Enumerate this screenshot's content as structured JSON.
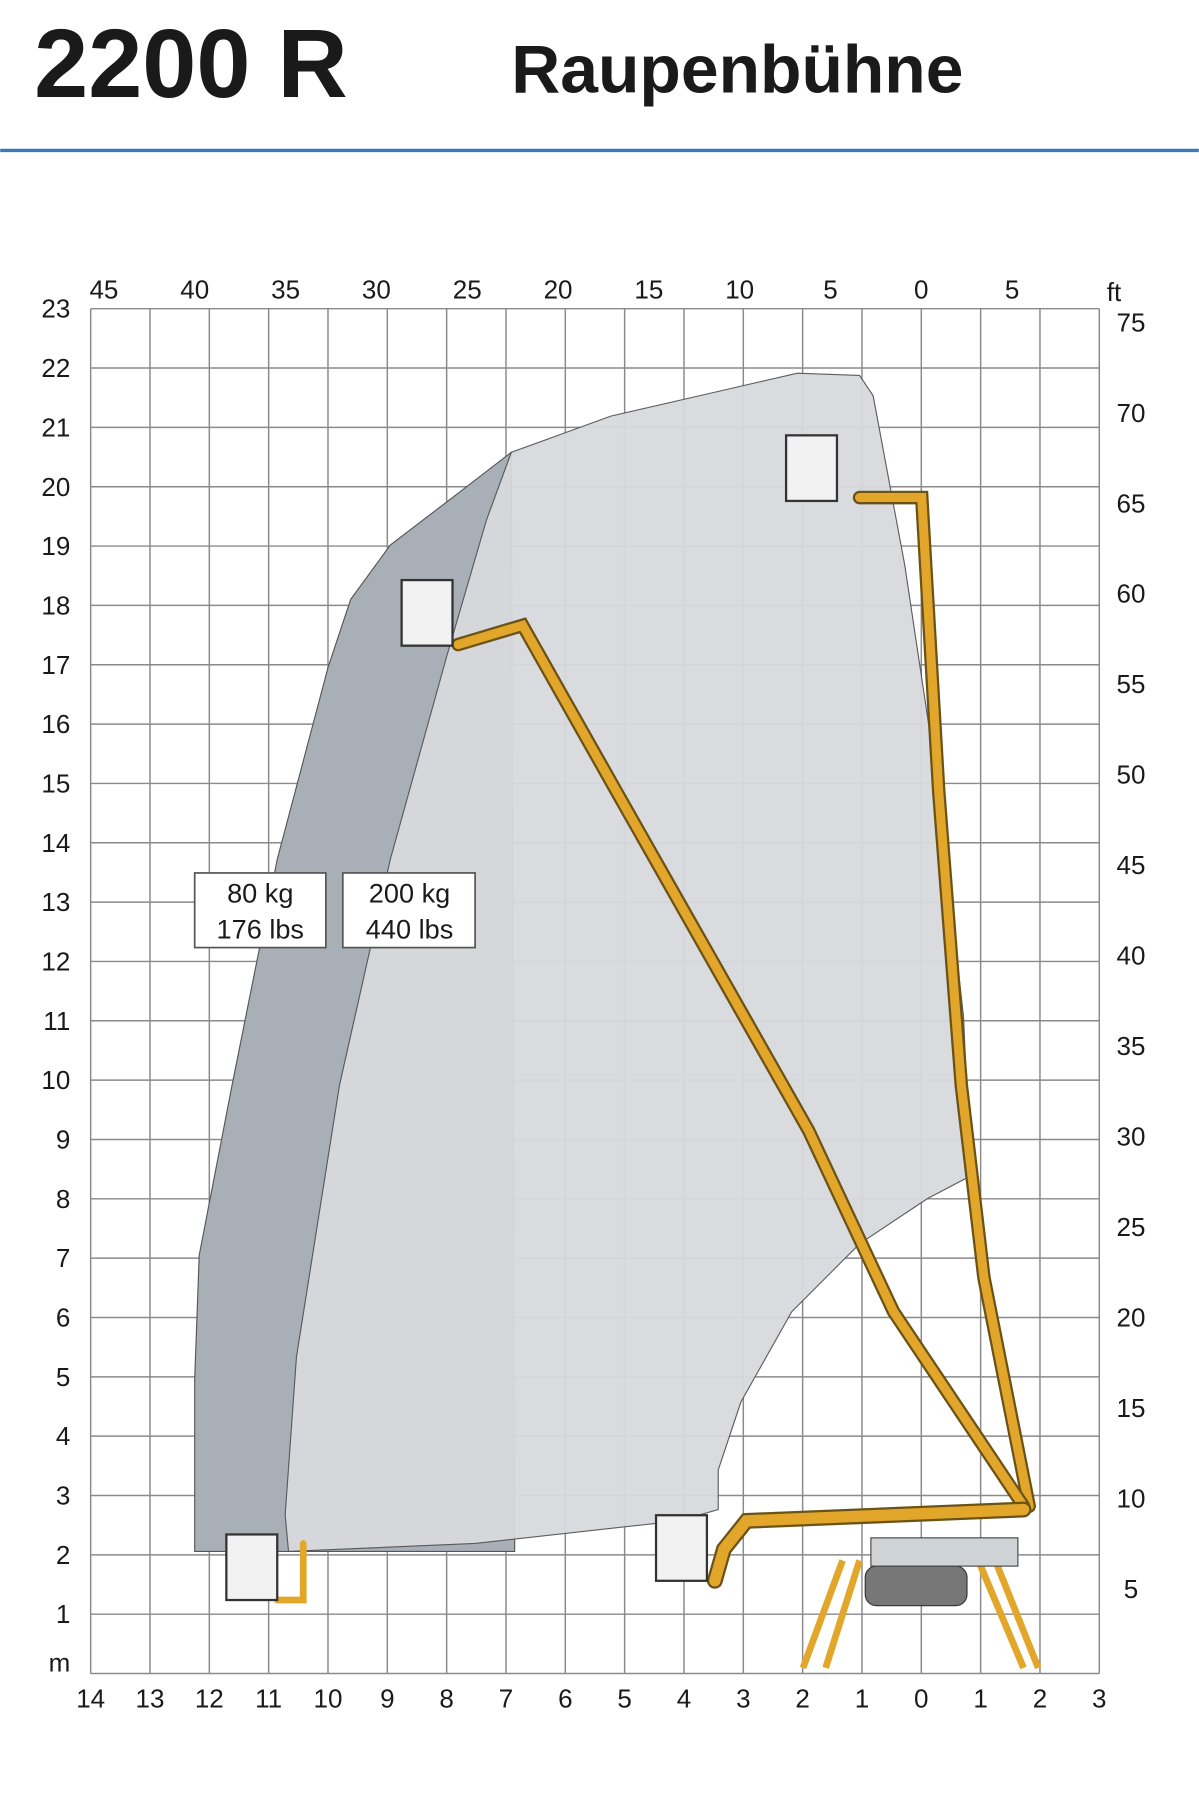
{
  "header": {
    "model": "2200 R",
    "name": "Raupenbühne"
  },
  "axes": {
    "left_unit": "m",
    "left": [
      "1",
      "2",
      "3",
      "4",
      "5",
      "6",
      "7",
      "8",
      "9",
      "10",
      "11",
      "12",
      "13",
      "14",
      "15",
      "16",
      "17",
      "18",
      "19",
      "20",
      "21",
      "22",
      "23"
    ],
    "bottom": [
      "14",
      "13",
      "12",
      "11",
      "10",
      "9",
      "8",
      "7",
      "6",
      "5",
      "4",
      "3",
      "2",
      "1",
      "0",
      "1",
      "2",
      "3"
    ],
    "top_unit": "ft",
    "top": [
      "45",
      "40",
      "35",
      "30",
      "25",
      "20",
      "15",
      "10",
      "5",
      "0",
      "5"
    ],
    "right": [
      "75",
      "70",
      "65",
      "60",
      "55",
      "50",
      "45",
      "40",
      "35",
      "30",
      "25",
      "20",
      "15",
      "10",
      "5"
    ]
  },
  "loads": [
    {
      "mass": "80 kg",
      "imperial": "176 lbs"
    },
    {
      "mass": "200 kg",
      "imperial": "440 lbs"
    }
  ]
}
